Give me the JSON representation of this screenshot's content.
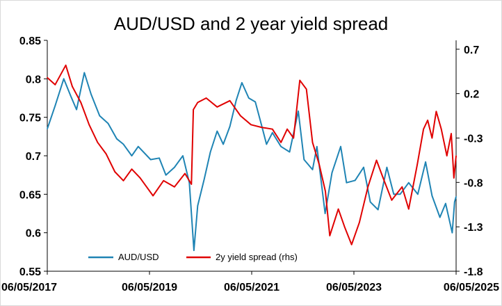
{
  "chart_data": {
    "type": "line",
    "title": "AUD/USD and 2 year yield spread",
    "x_start": "2017-05-06",
    "x_end": "2025-05-06",
    "x_tick_labels": [
      "06/05/2017",
      "06/05/2019",
      "06/05/2021",
      "06/05/2023",
      "06/05/2025"
    ],
    "y_left": {
      "min": 0.55,
      "max": 0.85,
      "ticks": [
        "0.55",
        "0.6",
        "0.65",
        "0.7",
        "0.75",
        "0.8",
        "0.85"
      ]
    },
    "y_right": {
      "min": -1.8,
      "max": 0.8,
      "ticks": [
        "-1.8",
        "-1.3",
        "-0.8",
        "-0.3",
        "0.2",
        "0.7"
      ]
    },
    "legend_position": "bottom",
    "grid": false,
    "series": [
      {
        "name": "AUD/USD",
        "axis": "left",
        "color": "#1f84b4",
        "points": [
          [
            "2017-05-06",
            0.735
          ],
          [
            "2017-07-01",
            0.765
          ],
          [
            "2017-09-01",
            0.8
          ],
          [
            "2017-10-20",
            0.778
          ],
          [
            "2017-12-01",
            0.76
          ],
          [
            "2018-01-26",
            0.808
          ],
          [
            "2018-03-15",
            0.78
          ],
          [
            "2018-05-15",
            0.752
          ],
          [
            "2018-07-15",
            0.742
          ],
          [
            "2018-09-15",
            0.722
          ],
          [
            "2018-11-01",
            0.715
          ],
          [
            "2018-12-31",
            0.7
          ],
          [
            "2019-02-15",
            0.712
          ],
          [
            "2019-05-15",
            0.695
          ],
          [
            "2019-07-15",
            0.697
          ],
          [
            "2019-09-01",
            0.675
          ],
          [
            "2019-11-01",
            0.685
          ],
          [
            "2019-12-31",
            0.7
          ],
          [
            "2020-02-15",
            0.665
          ],
          [
            "2020-03-19",
            0.577
          ],
          [
            "2020-04-15",
            0.635
          ],
          [
            "2020-06-01",
            0.67
          ],
          [
            "2020-07-15",
            0.705
          ],
          [
            "2020-09-01",
            0.732
          ],
          [
            "2020-10-15",
            0.715
          ],
          [
            "2020-12-01",
            0.738
          ],
          [
            "2021-01-15",
            0.772
          ],
          [
            "2021-02-25",
            0.795
          ],
          [
            "2021-04-15",
            0.775
          ],
          [
            "2021-06-01",
            0.77
          ],
          [
            "2021-07-15",
            0.74
          ],
          [
            "2021-08-20",
            0.715
          ],
          [
            "2021-10-01",
            0.73
          ],
          [
            "2021-12-01",
            0.712
          ],
          [
            "2022-02-01",
            0.705
          ],
          [
            "2022-04-04",
            0.758
          ],
          [
            "2022-05-15",
            0.695
          ],
          [
            "2022-07-15",
            0.682
          ],
          [
            "2022-08-15",
            0.712
          ],
          [
            "2022-10-13",
            0.625
          ],
          [
            "2022-12-01",
            0.678
          ],
          [
            "2023-02-01",
            0.712
          ],
          [
            "2023-03-15",
            0.665
          ],
          [
            "2023-05-15",
            0.668
          ],
          [
            "2023-07-15",
            0.685
          ],
          [
            "2023-09-01",
            0.64
          ],
          [
            "2023-10-26",
            0.63
          ],
          [
            "2023-12-28",
            0.685
          ],
          [
            "2024-02-15",
            0.65
          ],
          [
            "2024-04-01",
            0.65
          ],
          [
            "2024-06-01",
            0.665
          ],
          [
            "2024-08-05",
            0.65
          ],
          [
            "2024-09-30",
            0.692
          ],
          [
            "2024-11-15",
            0.648
          ],
          [
            "2025-01-10",
            0.62
          ],
          [
            "2025-02-20",
            0.638
          ],
          [
            "2025-04-08",
            0.6
          ],
          [
            "2025-04-25",
            0.64
          ],
          [
            "2025-05-06",
            0.647
          ]
        ]
      },
      {
        "name": "2y yield spread (rhs)",
        "axis": "right",
        "color": "#e00000",
        "points": [
          [
            "2017-05-06",
            0.38
          ],
          [
            "2017-07-01",
            0.3
          ],
          [
            "2017-09-15",
            0.52
          ],
          [
            "2017-11-01",
            0.28
          ],
          [
            "2018-01-01",
            0.1
          ],
          [
            "2018-03-01",
            -0.15
          ],
          [
            "2018-05-01",
            -0.35
          ],
          [
            "2018-07-01",
            -0.48
          ],
          [
            "2018-09-01",
            -0.68
          ],
          [
            "2018-11-01",
            -0.78
          ],
          [
            "2018-12-31",
            -0.65
          ],
          [
            "2019-03-01",
            -0.75
          ],
          [
            "2019-06-01",
            -0.95
          ],
          [
            "2019-08-15",
            -0.78
          ],
          [
            "2019-11-01",
            -0.85
          ],
          [
            "2020-01-15",
            -0.7
          ],
          [
            "2020-03-01",
            -0.82
          ],
          [
            "2020-03-15",
            0.02
          ],
          [
            "2020-04-15",
            0.1
          ],
          [
            "2020-06-15",
            0.15
          ],
          [
            "2020-09-01",
            0.05
          ],
          [
            "2020-12-01",
            0.12
          ],
          [
            "2021-02-15",
            -0.05
          ],
          [
            "2021-05-01",
            -0.15
          ],
          [
            "2021-07-15",
            -0.18
          ],
          [
            "2021-10-01",
            -0.2
          ],
          [
            "2021-12-01",
            -0.35
          ],
          [
            "2022-01-15",
            -0.2
          ],
          [
            "2022-03-01",
            -0.3
          ],
          [
            "2022-04-15",
            0.35
          ],
          [
            "2022-06-01",
            0.25
          ],
          [
            "2022-07-15",
            -0.35
          ],
          [
            "2022-09-01",
            -0.6
          ],
          [
            "2022-10-15",
            -0.9
          ],
          [
            "2022-11-15",
            -1.4
          ],
          [
            "2023-01-15",
            -1.1
          ],
          [
            "2023-03-01",
            -1.3
          ],
          [
            "2023-04-20",
            -1.5
          ],
          [
            "2023-06-15",
            -1.25
          ],
          [
            "2023-08-15",
            -0.85
          ],
          [
            "2023-10-15",
            -0.55
          ],
          [
            "2023-12-01",
            -0.75
          ],
          [
            "2024-02-01",
            -1.0
          ],
          [
            "2024-04-15",
            -0.85
          ],
          [
            "2024-06-01",
            -1.1
          ],
          [
            "2024-08-01",
            -0.6
          ],
          [
            "2024-09-15",
            -0.2
          ],
          [
            "2024-10-15",
            -0.1
          ],
          [
            "2024-11-15",
            -0.3
          ],
          [
            "2024-12-15",
            0.0
          ],
          [
            "2025-01-20",
            -0.2
          ],
          [
            "2025-03-01",
            -0.5
          ],
          [
            "2025-04-01",
            -0.25
          ],
          [
            "2025-04-20",
            -0.75
          ],
          [
            "2025-05-06",
            -0.5
          ]
        ]
      }
    ]
  }
}
